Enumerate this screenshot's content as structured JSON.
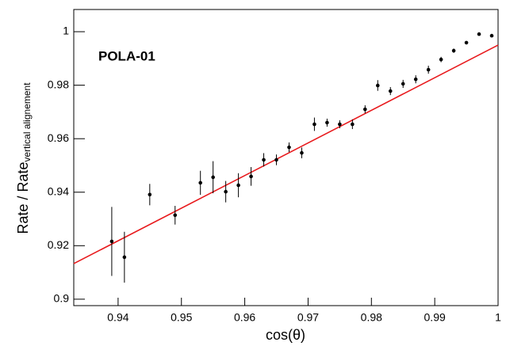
{
  "chart_data": {
    "type": "scatter",
    "annotation": "POLA-01",
    "xlabel": "cos(θ)",
    "ylabel": "Rate / Rate",
    "ylabel_sub": "vertical alignement",
    "x": [
      0.939,
      0.941,
      0.945,
      0.949,
      0.953,
      0.955,
      0.957,
      0.959,
      0.961,
      0.963,
      0.965,
      0.967,
      0.969,
      0.971,
      0.973,
      0.975,
      0.977,
      0.979,
      0.981,
      0.983,
      0.985,
      0.987,
      0.989,
      0.991,
      0.993,
      0.995,
      0.997,
      0.999
    ],
    "values": [
      0.9216,
      0.9157,
      0.9391,
      0.9314,
      0.9435,
      0.9456,
      0.9402,
      0.9426,
      0.9459,
      0.9521,
      0.9521,
      0.9568,
      0.9547,
      0.9654,
      0.966,
      0.9654,
      0.9654,
      0.971,
      0.9799,
      0.9778,
      0.9805,
      0.9822,
      0.9858,
      0.9896,
      0.9929,
      0.9959,
      0.9991,
      0.9985
    ],
    "errors": [
      0.0129,
      0.0095,
      0.004,
      0.0035,
      0.0045,
      0.006,
      0.004,
      0.0045,
      0.0035,
      0.0025,
      0.002,
      0.0018,
      0.002,
      0.0025,
      0.0015,
      0.0015,
      0.0018,
      0.0015,
      0.002,
      0.0015,
      0.0015,
      0.0015,
      0.0015,
      0.001,
      0.0008,
      0.0005,
      0,
      0
    ],
    "color": "#000000",
    "fit": {
      "x": [
        0.933,
        1.0
      ],
      "y": [
        0.9133,
        0.995
      ],
      "color": "#e8191c"
    },
    "xlim": [
      0.933,
      1.0
    ],
    "ylim": [
      0.8976,
      1.0083
    ],
    "xticks": [
      0.94,
      0.95,
      0.96,
      0.97,
      0.98,
      0.99,
      1
    ],
    "yticks": [
      0.9,
      0.92,
      0.94,
      0.96,
      0.98,
      1
    ]
  }
}
